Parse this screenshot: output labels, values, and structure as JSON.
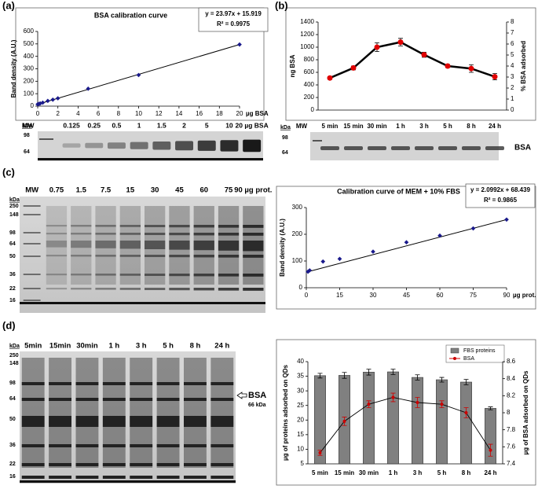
{
  "panel_labels": [
    "(a)",
    "(b)",
    "(c)",
    "(d)"
  ],
  "chart_data": [
    {
      "type": "scatter",
      "title": "BSA calibration curve",
      "equation": "y = 23.97x + 15.919",
      "r_squared": "R² = 0.9975",
      "y_label": "Band density (A.U.)",
      "x_label": "µg BSA",
      "color": "#1a1a8c",
      "x": [
        0,
        0.125,
        0.25,
        0.5,
        1,
        1.5,
        2,
        5,
        10,
        20
      ],
      "values": [
        15,
        18,
        22,
        28,
        42,
        52,
        63,
        140,
        250,
        495
      ],
      "xlim": [
        0,
        20
      ],
      "xticks": [
        0,
        2,
        4,
        6,
        8,
        10,
        12,
        14,
        16,
        18,
        20
      ],
      "ylim": [
        0,
        600
      ],
      "yticks": [
        0,
        100,
        200,
        300,
        400,
        500,
        600
      ]
    },
    {
      "type": "line",
      "y_label": "ng BSA",
      "y2_label": "% BSA adsorbed",
      "categories": [
        "5 min",
        "15 min",
        "30 min",
        "1 h",
        "3 h",
        "5 h",
        "8 h",
        "24 h"
      ],
      "series": [
        {
          "color": "#e00000",
          "values": [
            510,
            670,
            1000,
            1080,
            880,
            700,
            660,
            530
          ],
          "errors": [
            20,
            30,
            70,
            60,
            40,
            25,
            60,
            50
          ]
        }
      ],
      "ylim": [
        0,
        1400
      ],
      "yticks": [
        0,
        200,
        400,
        600,
        800,
        1000,
        1200,
        1400
      ],
      "y2lim": [
        0,
        8
      ],
      "y2ticks": [
        0,
        1,
        2,
        3,
        4,
        5,
        6,
        7,
        8
      ]
    },
    {
      "type": "scatter",
      "title": "Calibration curve of MEM + 10% FBS",
      "equation": "y = 2.0992x + 68.439",
      "r_squared": "R² = 0.9865",
      "y_label": "Band density (A.U.)",
      "x_label": "µg prot.",
      "color": "#1a1a8c",
      "x": [
        0.75,
        1.5,
        7.5,
        15,
        30,
        45,
        60,
        75,
        90
      ],
      "values": [
        60,
        65,
        98,
        108,
        135,
        170,
        195,
        222,
        255
      ],
      "xlim": [
        0,
        90
      ],
      "xticks": [
        0,
        15,
        30,
        45,
        60,
        75,
        90
      ],
      "ylim": [
        0,
        300
      ],
      "yticks": [
        0,
        100,
        200,
        300
      ]
    },
    {
      "type": "bar",
      "y_label": "µg of proteins adsorbed on QDs",
      "y2_label": "µg of BSA adsorbed on QDs",
      "categories": [
        "5 min",
        "15 min",
        "30 min",
        "1 h",
        "3 h",
        "5 h",
        "8 h",
        "24 h"
      ],
      "series": [
        {
          "name": "FBS proteins",
          "color": "#808080",
          "values": [
            35.2,
            35.3,
            36.4,
            36.5,
            34.6,
            33.8,
            33.0,
            24.0
          ],
          "errors": [
            0.8,
            1.0,
            1.0,
            0.9,
            0.9,
            0.8,
            0.9,
            0.5
          ]
        },
        {
          "name": "BSA",
          "type": "line",
          "axis": "y2",
          "color": "#cc0000",
          "values": [
            7.53,
            7.9,
            8.1,
            8.18,
            8.12,
            8.1,
            8.0,
            7.56
          ],
          "errors": [
            0.03,
            0.05,
            0.04,
            0.05,
            0.06,
            0.04,
            0.06,
            0.07
          ]
        }
      ],
      "ylim": [
        5,
        40
      ],
      "yticks": [
        5,
        10,
        15,
        20,
        25,
        30,
        35,
        40
      ],
      "y2lim": [
        7.4,
        8.6
      ],
      "y2ticks": [
        7.4,
        7.6,
        7.8,
        8,
        8.2,
        8.4,
        8.6
      ]
    }
  ],
  "gels": [
    {
      "marker_unit": "kDa",
      "markers": [
        "98",
        "64"
      ],
      "lanes": [
        "MW",
        "0.125",
        "0.25",
        "0.5",
        "1",
        "1.5",
        "2",
        "5",
        "10",
        "20 µg BSA"
      ]
    },
    {
      "marker_unit": "kDa",
      "markers": [
        "98",
        "64"
      ],
      "lanes": [
        "MW"
      ],
      "band_label": "BSA"
    },
    {
      "marker_unit": "kDa",
      "markers": [
        "250",
        "148",
        "98",
        "64",
        "50",
        "36",
        "22",
        "16"
      ],
      "lanes": [
        "MW",
        "0.75",
        "1.5",
        "7.5",
        "15",
        "30",
        "45",
        "60",
        "75",
        "90 µg prot."
      ]
    },
    {
      "marker_unit": "kDa",
      "markers": [
        "250",
        "148",
        "98",
        "64",
        "50",
        "36",
        "22",
        "16"
      ],
      "lanes": [
        "5min",
        "15min",
        "30min",
        "1 h",
        "3 h",
        "5 h",
        "8 h",
        "24 h"
      ],
      "band_label": "BSA",
      "band_size": "66 kDa"
    }
  ]
}
